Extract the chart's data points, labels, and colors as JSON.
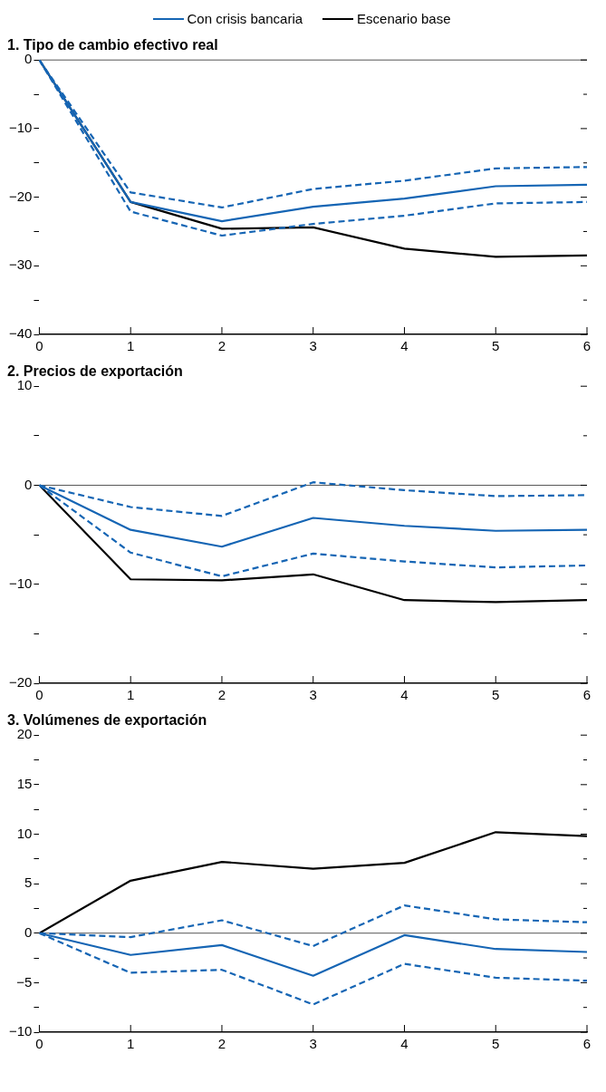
{
  "chart_data": [
    {
      "type": "line",
      "title": "1. Tipo de cambio efectivo real",
      "x": [
        0,
        1,
        2,
        3,
        4,
        5,
        6
      ],
      "xlim": [
        0,
        6
      ],
      "xticks": [
        0,
        1,
        2,
        3,
        4,
        5,
        6
      ],
      "ylim": [
        -40,
        0
      ],
      "yticks": [
        {
          "value": -40,
          "label": "−40"
        },
        {
          "value": -35,
          "label": null
        },
        {
          "value": -30,
          "label": "−30"
        },
        {
          "value": -25,
          "label": null
        },
        {
          "value": -20,
          "label": "−20"
        },
        {
          "value": -15,
          "label": null
        },
        {
          "value": -10,
          "label": "−10"
        },
        {
          "value": -5,
          "label": null
        },
        0
      ],
      "grid": false,
      "legend": "top",
      "marker": "none",
      "ref_lines": [
        {
          "axis": "y",
          "value": 0,
          "color": "#555555"
        }
      ],
      "series": [
        {
          "name": "Con crisis bancaria",
          "color": "#1565b4",
          "line_style": "solid",
          "values": [
            0,
            -20.7,
            -23.5,
            -21.4,
            -20.2,
            -18.4,
            -18.2
          ]
        },
        {
          "color": "#1565b4",
          "line_style": "dashed",
          "values": [
            0,
            -19.3,
            -21.5,
            -18.8,
            -17.6,
            -15.8,
            -15.6
          ]
        },
        {
          "color": "#1565b4",
          "line_style": "dashed",
          "values": [
            0,
            -22.1,
            -25.6,
            -23.9,
            -22.7,
            -20.9,
            -20.7
          ]
        },
        {
          "name": "Escenario base",
          "color": "#000000",
          "line_style": "solid",
          "values": [
            0,
            -20.7,
            -24.6,
            -24.4,
            -27.5,
            -28.7,
            -28.5
          ]
        }
      ]
    },
    {
      "type": "line",
      "title": "2. Precios de exportación",
      "x": [
        0,
        1,
        2,
        3,
        4,
        5,
        6
      ],
      "xlim": [
        0,
        6
      ],
      "xticks": [
        0,
        1,
        2,
        3,
        4,
        5,
        6
      ],
      "ylim": [
        -20,
        10
      ],
      "yticks": [
        {
          "value": -20,
          "label": "−20"
        },
        {
          "value": -15,
          "label": null
        },
        {
          "value": -10,
          "label": "−10"
        },
        {
          "value": -5,
          "label": null
        },
        0,
        {
          "value": 5,
          "label": null
        },
        10
      ],
      "grid": false,
      "marker": "none",
      "ref_lines": [
        {
          "axis": "y",
          "value": 0,
          "color": "#555555"
        }
      ],
      "series": [
        {
          "color": "#1565b4",
          "line_style": "solid",
          "values": [
            0,
            -4.5,
            -6.2,
            -3.3,
            -4.1,
            -4.6,
            -4.5
          ]
        },
        {
          "color": "#1565b4",
          "line_style": "dashed",
          "values": [
            0,
            -2.2,
            -3.1,
            0.3,
            -0.5,
            -1.1,
            -1.0
          ]
        },
        {
          "color": "#1565b4",
          "line_style": "dashed",
          "values": [
            0,
            -6.8,
            -9.2,
            -6.9,
            -7.7,
            -8.3,
            -8.1
          ]
        },
        {
          "color": "#000000",
          "line_style": "solid",
          "values": [
            0,
            -9.5,
            -9.6,
            -9.0,
            -11.6,
            -11.8,
            -11.6
          ]
        }
      ]
    },
    {
      "type": "line",
      "title": "3. Volúmenes de exportación",
      "x": [
        0,
        1,
        2,
        3,
        4,
        5,
        6
      ],
      "xlim": [
        0,
        6
      ],
      "xticks": [
        0,
        1,
        2,
        3,
        4,
        5,
        6
      ],
      "ylim": [
        -10,
        20
      ],
      "yticks": [
        {
          "value": -10,
          "label": "−10"
        },
        {
          "value": -7.5,
          "label": null
        },
        {
          "value": -5,
          "label": "−5"
        },
        {
          "value": -2.5,
          "label": null
        },
        0,
        {
          "value": 2.5,
          "label": null
        },
        5,
        {
          "value": 7.5,
          "label": null
        },
        10,
        {
          "value": 12.5,
          "label": null
        },
        15,
        {
          "value": 17.5,
          "label": null
        },
        20
      ],
      "grid": false,
      "marker": "none",
      "ref_lines": [
        {
          "axis": "y",
          "value": 0,
          "color": "#555555"
        }
      ],
      "series": [
        {
          "color": "#1565b4",
          "line_style": "solid",
          "values": [
            0,
            -2.2,
            -1.2,
            -4.3,
            -0.2,
            -1.6,
            -1.9
          ]
        },
        {
          "color": "#1565b4",
          "line_style": "dashed",
          "values": [
            0,
            -0.4,
            1.3,
            -1.3,
            2.8,
            1.4,
            1.1
          ]
        },
        {
          "color": "#1565b4",
          "line_style": "dashed",
          "values": [
            0,
            -4.0,
            -3.7,
            -7.2,
            -3.1,
            -4.5,
            -4.8
          ]
        },
        {
          "color": "#000000",
          "line_style": "solid",
          "values": [
            0,
            5.3,
            7.2,
            6.5,
            7.1,
            10.2,
            9.8
          ]
        }
      ]
    }
  ]
}
